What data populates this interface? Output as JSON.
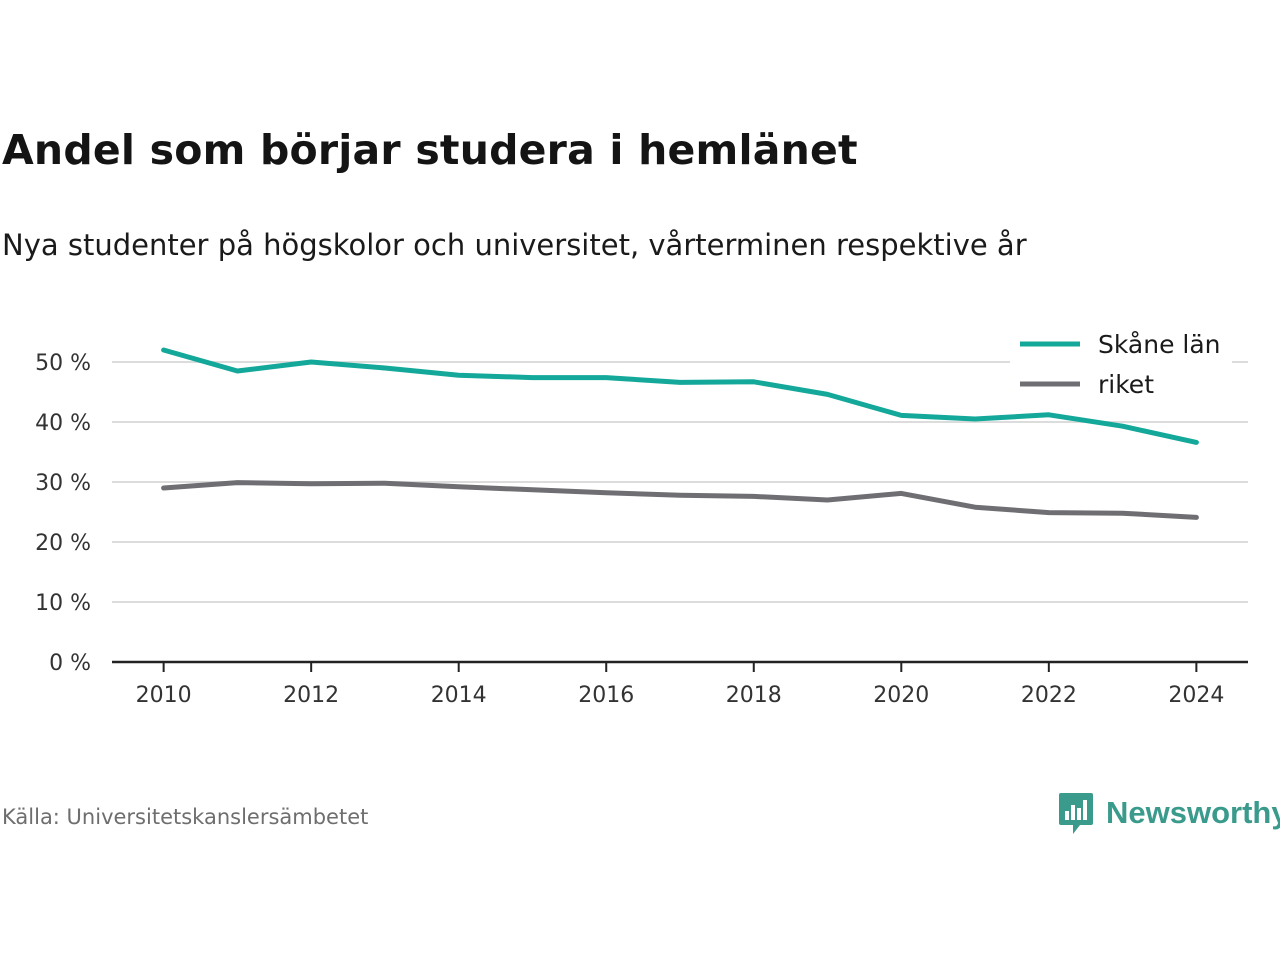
{
  "header": {
    "title": "Andel som börjar studera i hemlänet",
    "subtitle": "Nya studenter på högskolor och universitet, vårterminen respektive år"
  },
  "footer": {
    "source": "Källa: Universitetskanslersämbetet",
    "brand": "Newsworthy",
    "brand_icon": "chart-speech-bubble-icon"
  },
  "colors": {
    "skane": "#14a89a",
    "riket": "#6f6f73",
    "grid": "#dcdcdc",
    "axis": "#222222",
    "brand": "#3a9a8c"
  },
  "chart_data": {
    "type": "line",
    "title": "Andel som börjar studera i hemlänet",
    "subtitle": "Nya studenter på högskolor och universitet, vårterminen respektive år",
    "x": [
      2010,
      2011,
      2012,
      2013,
      2014,
      2015,
      2016,
      2017,
      2018,
      2019,
      2020,
      2021,
      2022,
      2023,
      2024
    ],
    "xticks": [
      2010,
      2012,
      2014,
      2016,
      2018,
      2020,
      2022,
      2024
    ],
    "xlim": [
      2009.3,
      2024.7
    ],
    "ylim": [
      0,
      50
    ],
    "yticks": [
      0,
      10,
      20,
      30,
      40,
      50
    ],
    "ytick_suffix": " %",
    "grid": true,
    "legend_position": "top-right",
    "series": [
      {
        "name": "Skåne län",
        "color": "#14a89a",
        "values": [
          52.0,
          48.5,
          50.0,
          49.0,
          47.8,
          47.4,
          47.4,
          46.6,
          46.7,
          44.6,
          41.1,
          40.5,
          41.2,
          39.3,
          36.6
        ]
      },
      {
        "name": "riket",
        "color": "#6f6f73",
        "values": [
          29.0,
          29.9,
          29.7,
          29.8,
          29.2,
          28.7,
          28.2,
          27.8,
          27.6,
          27.0,
          28.1,
          25.8,
          24.9,
          24.8,
          24.1
        ]
      }
    ]
  }
}
